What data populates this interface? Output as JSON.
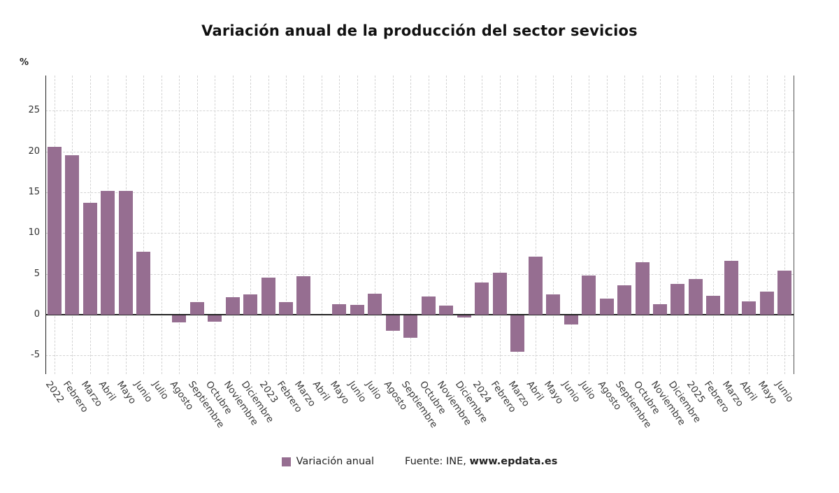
{
  "title": "Variación anual de la producción del sector sevicios",
  "y_axis_unit": "%",
  "legend": {
    "label": "Variación anual"
  },
  "source": {
    "prefix": "Fuente: INE, ",
    "site": "www.epdata.es"
  },
  "colors": {
    "bar": "#966E91",
    "axis": "#222222",
    "grid": "#d3d3d3"
  },
  "chart_data": {
    "type": "bar",
    "title": "Variación anual de la producción del sector sevicios",
    "xlabel": "",
    "ylabel": "%",
    "ylim": [
      -7.3,
      29.3
    ],
    "yticks": [
      -5,
      0,
      5,
      10,
      15,
      20,
      25
    ],
    "grid": true,
    "legend_position": "bottom",
    "categories": [
      "2022",
      "Febrero",
      "Marzo",
      "Abril",
      "Mayo",
      "Junio",
      "Julio",
      "Agosto",
      "Septiembre",
      "Octubre",
      "Noviembre",
      "Diciembre",
      "2023",
      "Febrero",
      "Marzo",
      "Abril",
      "Mayo",
      "Junio",
      "Julio",
      "Agosto",
      "Septiembre",
      "Octubre",
      "Noviembre",
      "Diciembre",
      "2024",
      "Febrero",
      "Marzo",
      "Abril",
      "Mayo",
      "Junio",
      "Julio",
      "Agosto",
      "Septiembre",
      "Octubre",
      "Noviembre",
      "Diciembre",
      "2025",
      "Febrero",
      "Marzo",
      "Abril",
      "Mayo",
      "Junio"
    ],
    "values": [
      20.6,
      19.5,
      13.7,
      15.2,
      15.2,
      7.7,
      0.0,
      -0.9,
      1.5,
      -0.8,
      2.1,
      2.5,
      4.5,
      1.5,
      4.7,
      0.0,
      1.3,
      1.2,
      2.6,
      -1.9,
      -2.8,
      2.2,
      1.1,
      -0.3,
      3.9,
      5.1,
      -4.5,
      7.1,
      2.5,
      -1.1,
      4.8,
      2.0,
      3.6,
      6.4,
      1.3,
      3.8,
      4.4,
      2.3,
      6.6,
      1.6,
      2.8,
      5.4
    ]
  }
}
